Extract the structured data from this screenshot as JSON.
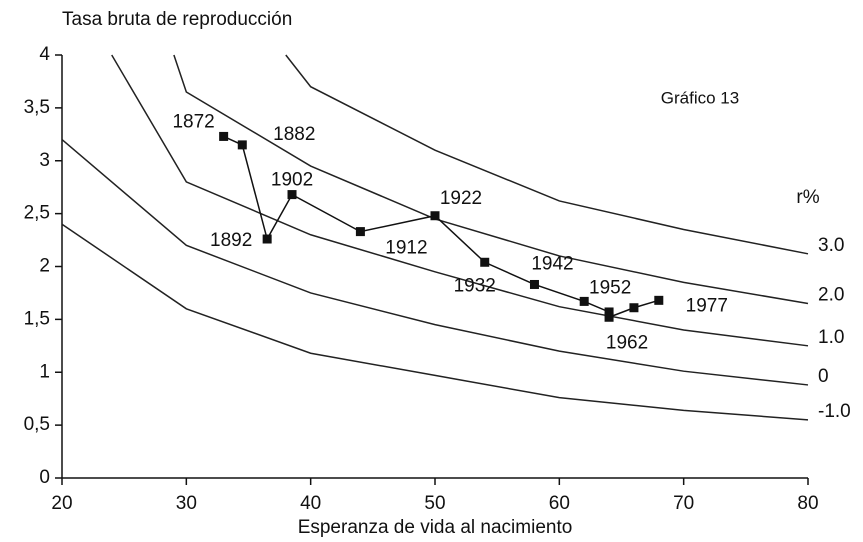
{
  "chart_data": {
    "type": "line",
    "title": "Tasa bruta de reproducción",
    "xlabel": "Esperanza de vida al nacimiento",
    "annotations": [
      "Gráfico 13",
      "r%"
    ],
    "xlim": [
      20,
      80
    ],
    "xticks": [
      20,
      30,
      40,
      50,
      60,
      70,
      80
    ],
    "ylim": [
      0,
      4
    ],
    "yticks": [
      0,
      {
        "value": 0.5,
        "label": "0,5"
      },
      1,
      {
        "value": 1.5,
        "label": "1,5"
      },
      2,
      {
        "value": 2.5,
        "label": "2,5"
      },
      3,
      {
        "value": 3.5,
        "label": "3,5"
      },
      4
    ],
    "series": [
      {
        "name": "-1.0",
        "color": "#222222",
        "x": [
          20,
          30,
          40,
          50,
          60,
          70,
          80
        ],
        "values": [
          2.4,
          1.6,
          1.18,
          0.97,
          0.76,
          0.64,
          0.55
        ]
      },
      {
        "name": "0",
        "color": "#222222",
        "x": [
          20,
          30,
          40,
          50,
          60,
          70,
          80
        ],
        "values": [
          3.2,
          2.2,
          1.75,
          1.45,
          1.2,
          1.01,
          0.88
        ]
      },
      {
        "name": "1.0",
        "color": "#222222",
        "x": [
          24,
          30,
          40,
          50,
          60,
          70,
          80
        ],
        "values": [
          4,
          2.8,
          2.3,
          1.95,
          1.62,
          1.4,
          1.25
        ]
      },
      {
        "name": "2.0",
        "color": "#222222",
        "x": [
          29,
          30,
          40,
          50,
          60,
          70,
          80
        ],
        "values": [
          4,
          3.65,
          2.95,
          2.45,
          2.1,
          1.85,
          1.65
        ]
      },
      {
        "name": "3.0",
        "color": "#222222",
        "x": [
          38,
          40,
          50,
          60,
          70,
          80
        ],
        "values": [
          4,
          3.7,
          3.1,
          2.62,
          2.35,
          2.12
        ]
      },
      {
        "x": [
          33,
          34.5,
          36.5,
          38.5,
          44,
          50,
          54,
          58,
          62,
          64,
          64,
          66,
          68
        ],
        "values": [
          3.23,
          3.15,
          2.26,
          2.68,
          2.33,
          2.48,
          2.04,
          1.83,
          1.67,
          1.57,
          1.52,
          1.61,
          1.68
        ],
        "point_labels": [
          "1872",
          "1882",
          "1892",
          "1902",
          "1912",
          "1922",
          "1932",
          "1942",
          "1952",
          null,
          "1962",
          null,
          "1977"
        ],
        "color": "#111111",
        "markers": true
      }
    ]
  }
}
